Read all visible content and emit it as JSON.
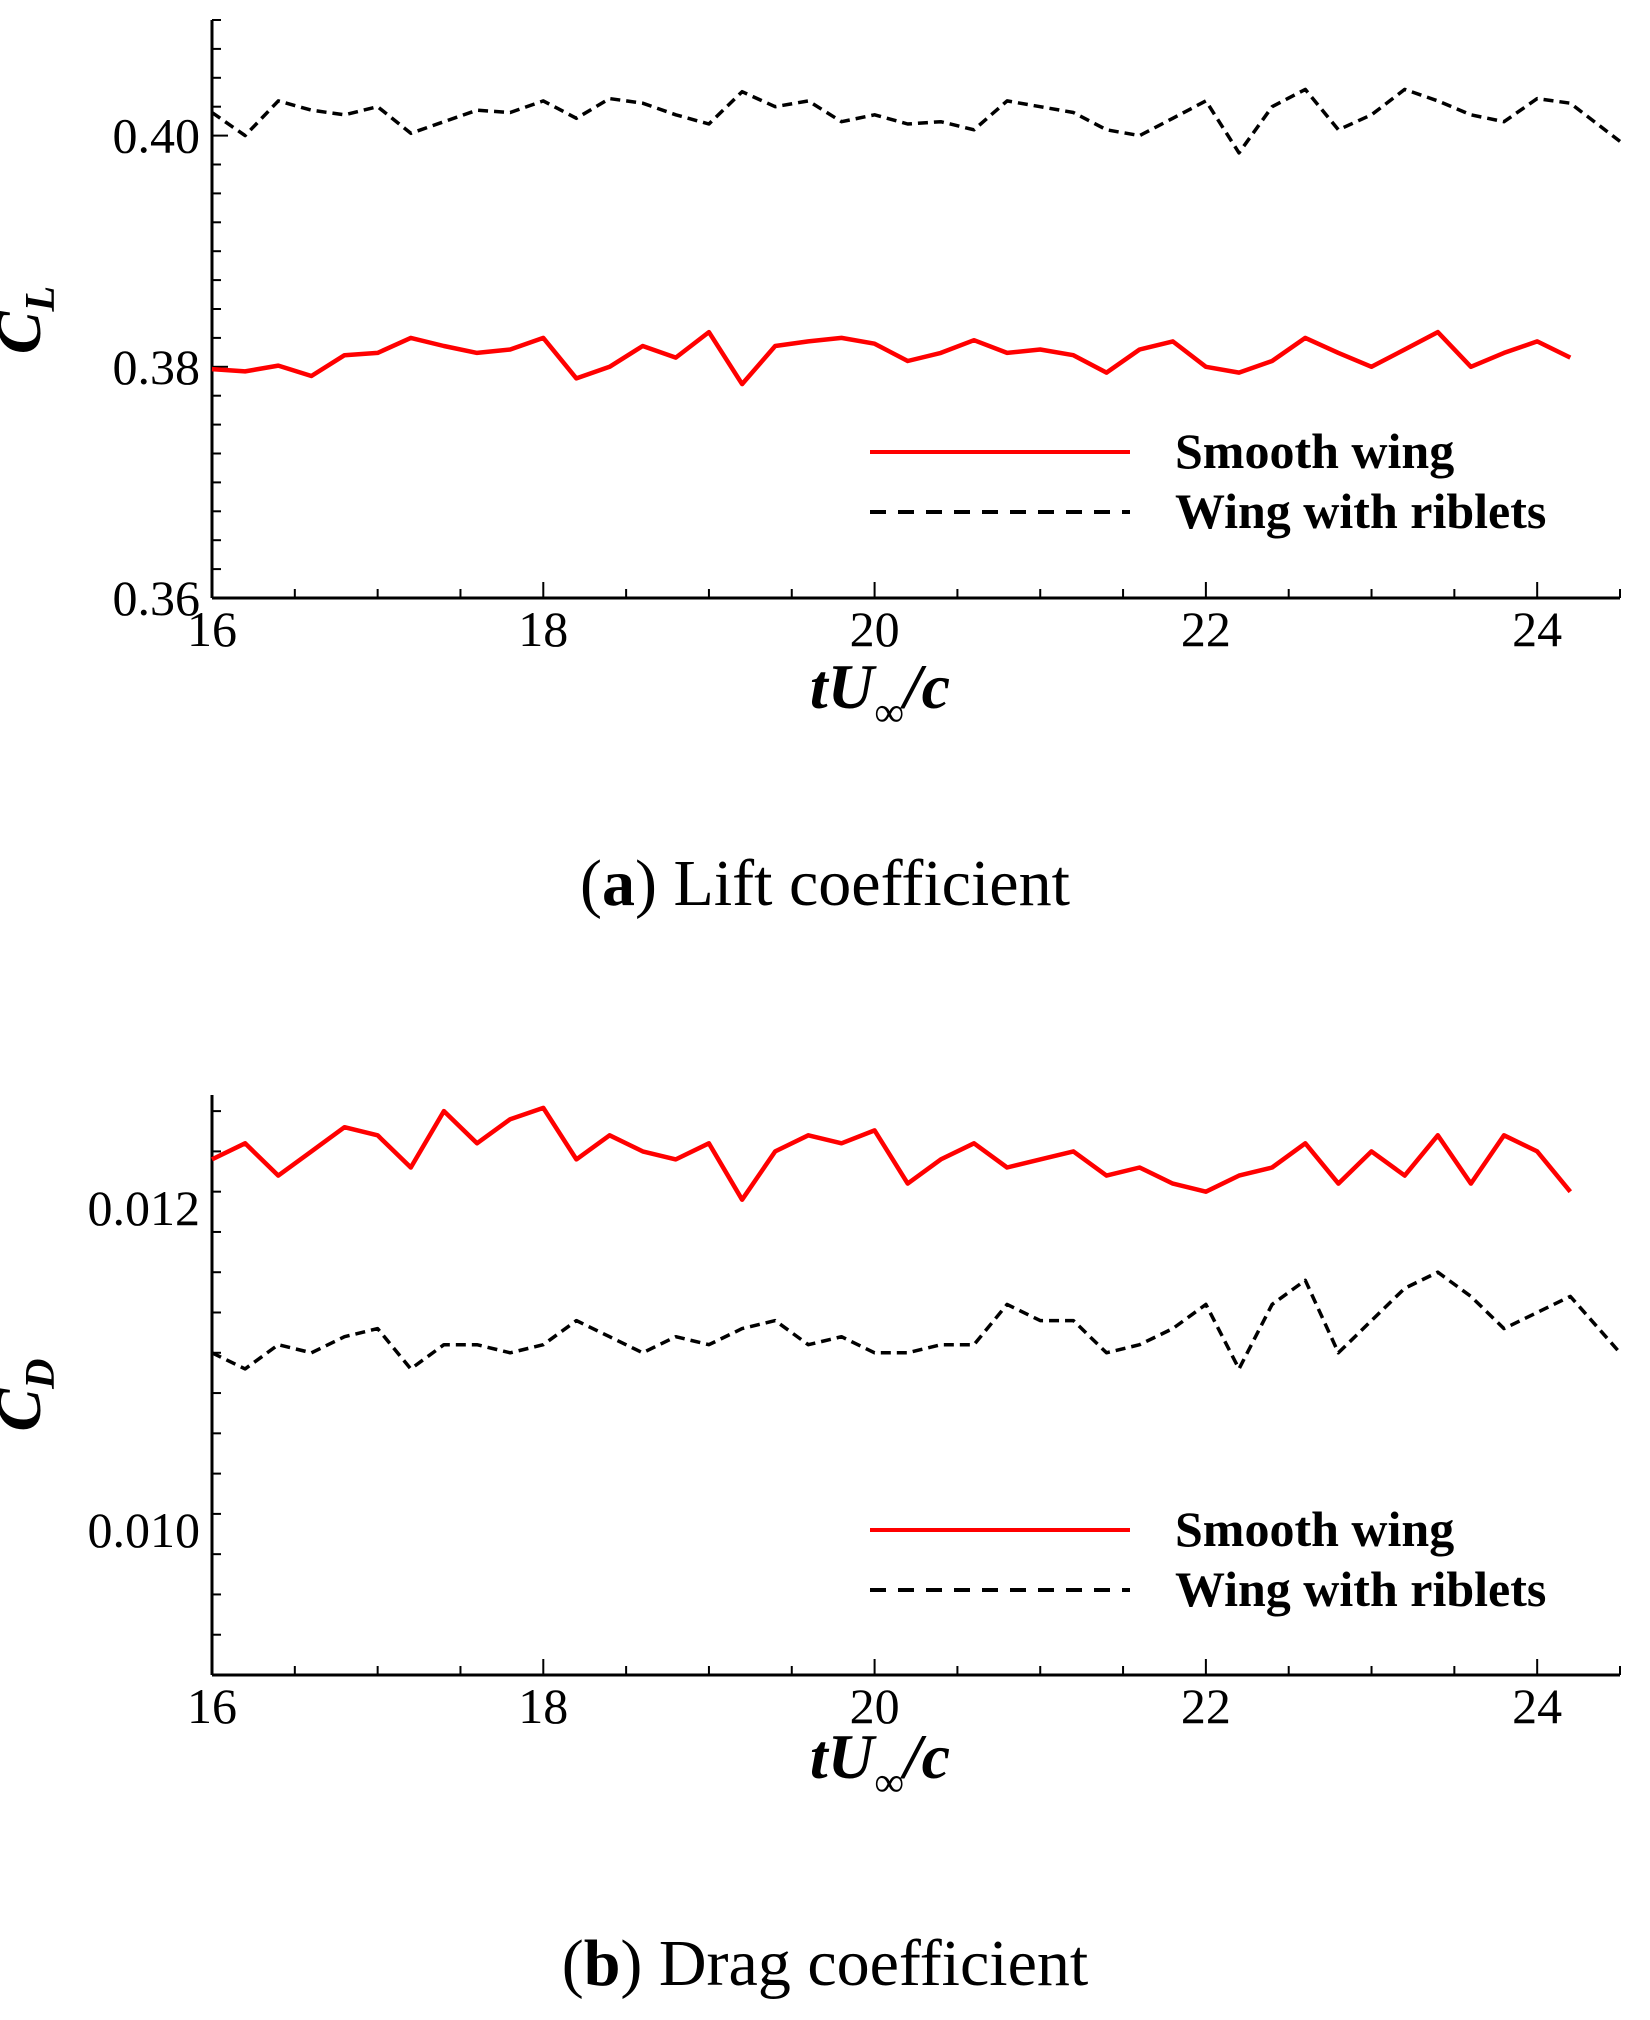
{
  "chart_data": [
    {
      "id": "lift",
      "type": "line",
      "title": "",
      "caption": {
        "prefix": "(",
        "letter": "a",
        "suffix": ") Lift coefficient"
      },
      "xlabel": {
        "main": "tU",
        "sub": "∞",
        "tail": "/c"
      },
      "ylabel": {
        "main": "C",
        "sub": "L"
      },
      "xlim": [
        16,
        24.5
      ],
      "ylim": [
        0.36,
        0.41
      ],
      "xticks": [
        16,
        18,
        20,
        22,
        24
      ],
      "xtick_labels": [
        "16",
        "18",
        "20",
        "22",
        "24"
      ],
      "yticks": [
        0.36,
        0.38,
        0.4
      ],
      "ytick_labels": [
        "0.36",
        "0.38",
        "0.40"
      ],
      "x_minor_step": 0.5,
      "y_minor_step": 0.0025,
      "legend": {
        "position": "lower-right"
      },
      "series": [
        {
          "name": "Smooth wing",
          "color": "#ff0000",
          "style": "solid",
          "x": [
            16.0,
            16.2,
            16.4,
            16.6,
            16.8,
            17.0,
            17.2,
            17.4,
            17.6,
            17.8,
            18.0,
            18.2,
            18.4,
            18.6,
            18.8,
            19.0,
            19.2,
            19.4,
            19.6,
            19.8,
            20.0,
            20.2,
            20.4,
            20.6,
            20.8,
            21.0,
            21.2,
            21.4,
            21.6,
            21.8,
            22.0,
            22.2,
            22.4,
            22.6,
            22.8,
            23.0,
            23.2,
            23.4,
            23.6,
            23.8,
            24.0,
            24.2
          ],
          "y": [
            0.3798,
            0.3796,
            0.3801,
            0.3792,
            0.381,
            0.3812,
            0.3825,
            0.3818,
            0.3812,
            0.3815,
            0.3825,
            0.379,
            0.38,
            0.3818,
            0.3808,
            0.383,
            0.3785,
            0.3818,
            0.3822,
            0.3825,
            0.382,
            0.3805,
            0.3812,
            0.3823,
            0.3812,
            0.3815,
            0.381,
            0.3795,
            0.3815,
            0.3822,
            0.38,
            0.3795,
            0.3805,
            0.3825,
            0.3812,
            0.38,
            0.3815,
            0.383,
            0.38,
            0.3812,
            0.3822,
            0.3808
          ]
        },
        {
          "name": "Wing with riblets",
          "color": "#000000",
          "style": "dashed",
          "x": [
            16.0,
            16.2,
            16.4,
            16.6,
            16.8,
            17.0,
            17.2,
            17.4,
            17.6,
            17.8,
            18.0,
            18.2,
            18.4,
            18.6,
            18.8,
            19.0,
            19.2,
            19.4,
            19.6,
            19.8,
            20.0,
            20.2,
            20.4,
            20.6,
            20.8,
            21.0,
            21.2,
            21.4,
            21.6,
            21.8,
            22.0,
            22.2,
            22.4,
            22.6,
            22.8,
            23.0,
            23.2,
            23.4,
            23.6,
            23.8,
            24.0,
            24.2,
            24.5
          ],
          "y": [
            0.402,
            0.4,
            0.403,
            0.4022,
            0.4018,
            0.4025,
            0.4002,
            0.4012,
            0.4022,
            0.402,
            0.403,
            0.4015,
            0.4032,
            0.4028,
            0.4018,
            0.401,
            0.4038,
            0.4025,
            0.403,
            0.4012,
            0.4018,
            0.401,
            0.4012,
            0.4005,
            0.403,
            0.4025,
            0.402,
            0.4005,
            0.4,
            0.4015,
            0.403,
            0.3985,
            0.4025,
            0.404,
            0.4005,
            0.4018,
            0.404,
            0.403,
            0.4018,
            0.4012,
            0.4032,
            0.4028,
            0.3995
          ]
        }
      ]
    },
    {
      "id": "drag",
      "type": "line",
      "title": "",
      "caption": {
        "prefix": "(",
        "letter": "b",
        "suffix": ") Drag coefficient"
      },
      "xlabel": {
        "main": "tU",
        "sub": "∞",
        "tail": "/c"
      },
      "ylabel": {
        "main": "C",
        "sub": "D"
      },
      "xlim": [
        16,
        24.5
      ],
      "ylim": [
        0.0091,
        0.0127
      ],
      "xticks": [
        16,
        18,
        20,
        22,
        24
      ],
      "xtick_labels": [
        "16",
        "18",
        "20",
        "22",
        "24"
      ],
      "yticks": [
        0.01,
        0.012
      ],
      "ytick_labels": [
        "0.010",
        "0.012"
      ],
      "x_minor_step": 0.5,
      "y_minor_step": 0.00025,
      "legend": {
        "position": "lower-right"
      },
      "series": [
        {
          "name": "Smooth wing",
          "color": "#ff0000",
          "style": "solid",
          "x": [
            16.0,
            16.2,
            16.4,
            16.6,
            16.8,
            17.0,
            17.2,
            17.4,
            17.6,
            17.8,
            18.0,
            18.2,
            18.4,
            18.6,
            18.8,
            19.0,
            19.2,
            19.4,
            19.6,
            19.8,
            20.0,
            20.2,
            20.4,
            20.6,
            20.8,
            21.0,
            21.2,
            21.4,
            21.6,
            21.8,
            22.0,
            22.2,
            22.4,
            22.6,
            22.8,
            23.0,
            23.2,
            23.4,
            23.6,
            23.8,
            24.0,
            24.2
          ],
          "y": [
            0.0123,
            0.0124,
            0.0122,
            0.01235,
            0.0125,
            0.01245,
            0.01225,
            0.0126,
            0.0124,
            0.01255,
            0.01262,
            0.0123,
            0.01245,
            0.01235,
            0.0123,
            0.0124,
            0.01205,
            0.01235,
            0.01245,
            0.0124,
            0.01248,
            0.01215,
            0.0123,
            0.0124,
            0.01225,
            0.0123,
            0.01235,
            0.0122,
            0.01225,
            0.01215,
            0.0121,
            0.0122,
            0.01225,
            0.0124,
            0.01215,
            0.01235,
            0.0122,
            0.01245,
            0.01215,
            0.01245,
            0.01235,
            0.0121
          ]
        },
        {
          "name": "Wing with riblets",
          "color": "#000000",
          "style": "dashed",
          "x": [
            16.0,
            16.2,
            16.4,
            16.6,
            16.8,
            17.0,
            17.2,
            17.4,
            17.6,
            17.8,
            18.0,
            18.2,
            18.4,
            18.6,
            18.8,
            19.0,
            19.2,
            19.4,
            19.6,
            19.8,
            20.0,
            20.2,
            20.4,
            20.6,
            20.8,
            21.0,
            21.2,
            21.4,
            21.6,
            21.8,
            22.0,
            22.2,
            22.4,
            22.6,
            22.8,
            23.0,
            23.2,
            23.4,
            23.6,
            23.8,
            24.0,
            24.2,
            24.5
          ],
          "y": [
            0.0111,
            0.011,
            0.01115,
            0.0111,
            0.0112,
            0.01125,
            0.011,
            0.01115,
            0.01115,
            0.0111,
            0.01115,
            0.0113,
            0.0112,
            0.0111,
            0.0112,
            0.01115,
            0.01125,
            0.0113,
            0.01115,
            0.0112,
            0.0111,
            0.0111,
            0.01115,
            0.01115,
            0.0114,
            0.0113,
            0.0113,
            0.0111,
            0.01115,
            0.01125,
            0.0114,
            0.011,
            0.0114,
            0.01155,
            0.0111,
            0.0113,
            0.0115,
            0.0116,
            0.01145,
            0.01125,
            0.01135,
            0.01145,
            0.0111
          ]
        }
      ]
    }
  ]
}
